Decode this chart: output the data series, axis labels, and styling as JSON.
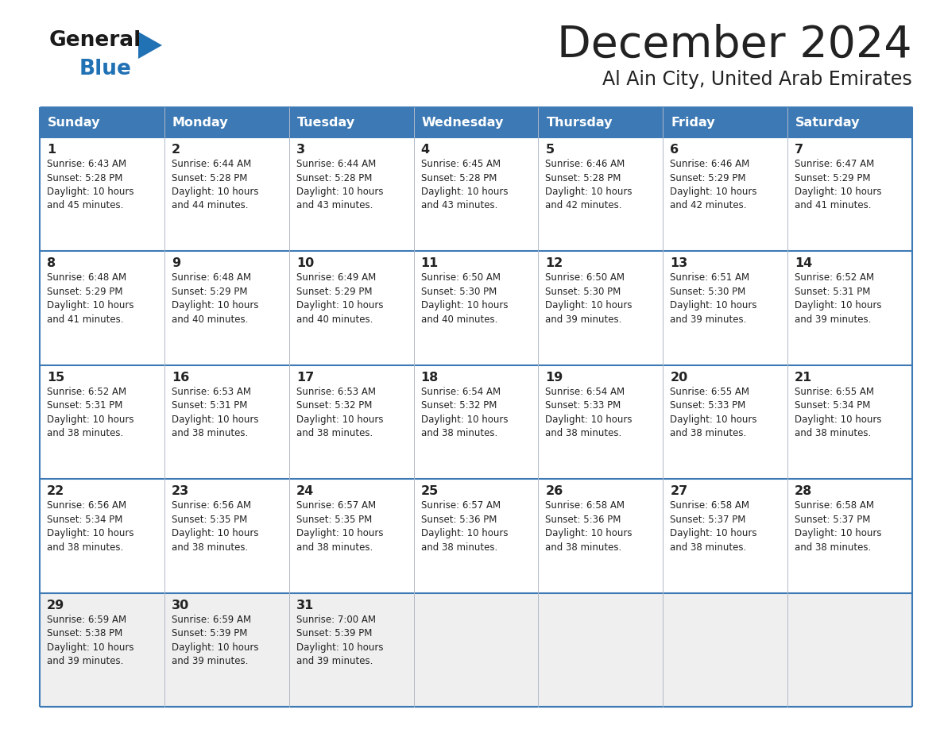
{
  "title": "December 2024",
  "subtitle": "Al Ain City, United Arab Emirates",
  "header_bg_color": "#3d7ab5",
  "header_text_color": "#ffffff",
  "text_color": "#222222",
  "border_color": "#3d7ab5",
  "cell_bg_even": "#ffffff",
  "cell_bg_odd": "#f2f2f2",
  "days_of_week": [
    "Sunday",
    "Monday",
    "Tuesday",
    "Wednesday",
    "Thursday",
    "Friday",
    "Saturday"
  ],
  "calendar": [
    [
      {
        "day": 1,
        "sunrise": "6:43 AM",
        "sunset": "5:28 PM",
        "daylight_hours": 10,
        "daylight_minutes": 45
      },
      {
        "day": 2,
        "sunrise": "6:44 AM",
        "sunset": "5:28 PM",
        "daylight_hours": 10,
        "daylight_minutes": 44
      },
      {
        "day": 3,
        "sunrise": "6:44 AM",
        "sunset": "5:28 PM",
        "daylight_hours": 10,
        "daylight_minutes": 43
      },
      {
        "day": 4,
        "sunrise": "6:45 AM",
        "sunset": "5:28 PM",
        "daylight_hours": 10,
        "daylight_minutes": 43
      },
      {
        "day": 5,
        "sunrise": "6:46 AM",
        "sunset": "5:28 PM",
        "daylight_hours": 10,
        "daylight_minutes": 42
      },
      {
        "day": 6,
        "sunrise": "6:46 AM",
        "sunset": "5:29 PM",
        "daylight_hours": 10,
        "daylight_minutes": 42
      },
      {
        "day": 7,
        "sunrise": "6:47 AM",
        "sunset": "5:29 PM",
        "daylight_hours": 10,
        "daylight_minutes": 41
      }
    ],
    [
      {
        "day": 8,
        "sunrise": "6:48 AM",
        "sunset": "5:29 PM",
        "daylight_hours": 10,
        "daylight_minutes": 41
      },
      {
        "day": 9,
        "sunrise": "6:48 AM",
        "sunset": "5:29 PM",
        "daylight_hours": 10,
        "daylight_minutes": 40
      },
      {
        "day": 10,
        "sunrise": "6:49 AM",
        "sunset": "5:29 PM",
        "daylight_hours": 10,
        "daylight_minutes": 40
      },
      {
        "day": 11,
        "sunrise": "6:50 AM",
        "sunset": "5:30 PM",
        "daylight_hours": 10,
        "daylight_minutes": 40
      },
      {
        "day": 12,
        "sunrise": "6:50 AM",
        "sunset": "5:30 PM",
        "daylight_hours": 10,
        "daylight_minutes": 39
      },
      {
        "day": 13,
        "sunrise": "6:51 AM",
        "sunset": "5:30 PM",
        "daylight_hours": 10,
        "daylight_minutes": 39
      },
      {
        "day": 14,
        "sunrise": "6:52 AM",
        "sunset": "5:31 PM",
        "daylight_hours": 10,
        "daylight_minutes": 39
      }
    ],
    [
      {
        "day": 15,
        "sunrise": "6:52 AM",
        "sunset": "5:31 PM",
        "daylight_hours": 10,
        "daylight_minutes": 38
      },
      {
        "day": 16,
        "sunrise": "6:53 AM",
        "sunset": "5:31 PM",
        "daylight_hours": 10,
        "daylight_minutes": 38
      },
      {
        "day": 17,
        "sunrise": "6:53 AM",
        "sunset": "5:32 PM",
        "daylight_hours": 10,
        "daylight_minutes": 38
      },
      {
        "day": 18,
        "sunrise": "6:54 AM",
        "sunset": "5:32 PM",
        "daylight_hours": 10,
        "daylight_minutes": 38
      },
      {
        "day": 19,
        "sunrise": "6:54 AM",
        "sunset": "5:33 PM",
        "daylight_hours": 10,
        "daylight_minutes": 38
      },
      {
        "day": 20,
        "sunrise": "6:55 AM",
        "sunset": "5:33 PM",
        "daylight_hours": 10,
        "daylight_minutes": 38
      },
      {
        "day": 21,
        "sunrise": "6:55 AM",
        "sunset": "5:34 PM",
        "daylight_hours": 10,
        "daylight_minutes": 38
      }
    ],
    [
      {
        "day": 22,
        "sunrise": "6:56 AM",
        "sunset": "5:34 PM",
        "daylight_hours": 10,
        "daylight_minutes": 38
      },
      {
        "day": 23,
        "sunrise": "6:56 AM",
        "sunset": "5:35 PM",
        "daylight_hours": 10,
        "daylight_minutes": 38
      },
      {
        "day": 24,
        "sunrise": "6:57 AM",
        "sunset": "5:35 PM",
        "daylight_hours": 10,
        "daylight_minutes": 38
      },
      {
        "day": 25,
        "sunrise": "6:57 AM",
        "sunset": "5:36 PM",
        "daylight_hours": 10,
        "daylight_minutes": 38
      },
      {
        "day": 26,
        "sunrise": "6:58 AM",
        "sunset": "5:36 PM",
        "daylight_hours": 10,
        "daylight_minutes": 38
      },
      {
        "day": 27,
        "sunrise": "6:58 AM",
        "sunset": "5:37 PM",
        "daylight_hours": 10,
        "daylight_minutes": 38
      },
      {
        "day": 28,
        "sunrise": "6:58 AM",
        "sunset": "5:37 PM",
        "daylight_hours": 10,
        "daylight_minutes": 38
      }
    ],
    [
      {
        "day": 29,
        "sunrise": "6:59 AM",
        "sunset": "5:38 PM",
        "daylight_hours": 10,
        "daylight_minutes": 39
      },
      {
        "day": 30,
        "sunrise": "6:59 AM",
        "sunset": "5:39 PM",
        "daylight_hours": 10,
        "daylight_minutes": 39
      },
      {
        "day": 31,
        "sunrise": "7:00 AM",
        "sunset": "5:39 PM",
        "daylight_hours": 10,
        "daylight_minutes": 39
      },
      null,
      null,
      null,
      null
    ]
  ],
  "logo_general_color": "#1a1a1a",
  "logo_blue_color": "#2171b5",
  "logo_triangle_color": "#2171b5"
}
